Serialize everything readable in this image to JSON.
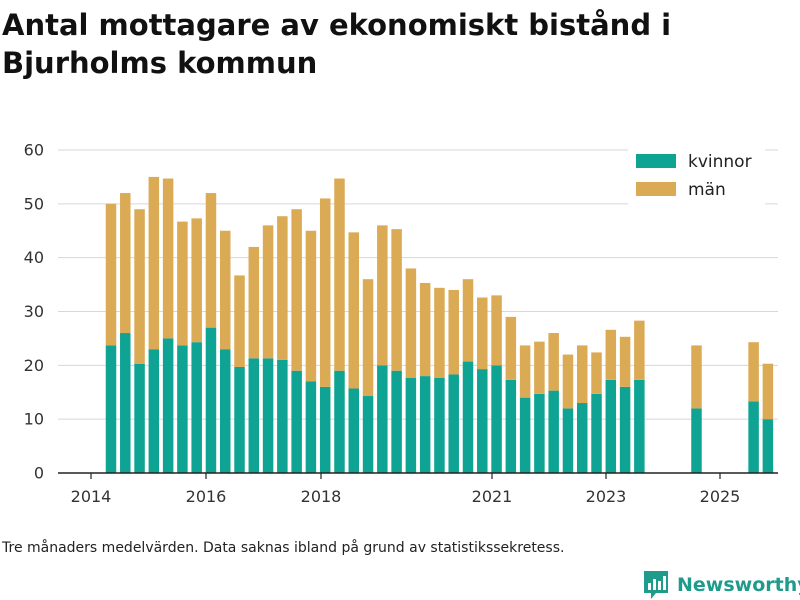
{
  "chart_data": {
    "type": "bar",
    "stacked": true,
    "title": "Antal mottagare av ekonomiskt bistånd i Bjurholms kommun",
    "xlabel": "",
    "ylabel": "",
    "ylim": [
      0,
      60
    ],
    "yticks": [
      0,
      10,
      20,
      30,
      40,
      50,
      60
    ],
    "xticks": [
      "2014",
      "2016",
      "2018",
      "2021",
      "2023",
      "2025"
    ],
    "grid": true,
    "legend": "top-right",
    "colors": {
      "kvinnor": "#0fa394",
      "man": "#dbaa55"
    },
    "series": [
      {
        "name": "kvinnor",
        "values": [
          23.7,
          26.0,
          20.3,
          23.0,
          25.0,
          23.7,
          24.3,
          27.0,
          23.0,
          19.7,
          21.3,
          21.3,
          21.0,
          19.0,
          17.0,
          16.0,
          19.0,
          15.7,
          14.3,
          20.0,
          19.0,
          17.7,
          18.0,
          17.7,
          18.3,
          20.7,
          19.3,
          20.0,
          17.3,
          14.0,
          14.7,
          15.3,
          12.0,
          13.0,
          14.7,
          17.3,
          16.0,
          17.3,
          null,
          null,
          null,
          12.0,
          null,
          null,
          null,
          13.3,
          10.0
        ]
      },
      {
        "name": "män",
        "values": [
          26.3,
          26.0,
          28.7,
          32.0,
          29.7,
          23.0,
          23.0,
          25.0,
          22.0,
          17.0,
          20.7,
          24.7,
          26.7,
          30.0,
          28.0,
          35.0,
          35.7,
          29.0,
          21.7,
          26.0,
          26.3,
          20.3,
          17.3,
          16.7,
          15.7,
          15.3,
          13.3,
          13.0,
          11.7,
          9.7,
          9.7,
          10.7,
          10.0,
          10.7,
          7.7,
          9.3,
          9.3,
          11.0,
          null,
          null,
          null,
          11.7,
          null,
          null,
          null,
          11.0,
          10.3
        ]
      }
    ]
  },
  "footnote": "Tre månaders medelvärden. Data saknas ibland på grund av statistikssekretess.",
  "brand": {
    "name": "Newsworthy",
    "icon": "newsworthy-logo-icon",
    "color": "#1f9b8c"
  }
}
